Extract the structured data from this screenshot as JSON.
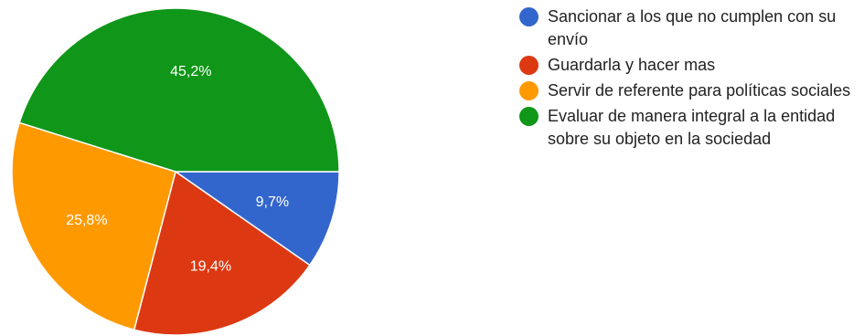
{
  "chart_data": {
    "type": "pie",
    "categories": [
      "Sancionar a los que no cumplen con su envío",
      "Guardarla y hacer mas",
      "Servir de referente para políticas sociales",
      "Evaluar de manera integral a la entidad sobre su objeto en la sociedad"
    ],
    "values": [
      9.7,
      19.4,
      25.8,
      45.2
    ],
    "labels": [
      "9,7%",
      "19,4%",
      "25,8%",
      "45,2%"
    ],
    "colors": [
      "#3366cc",
      "#dc3912",
      "#ff9900",
      "#109618"
    ],
    "legend_position": "right"
  }
}
